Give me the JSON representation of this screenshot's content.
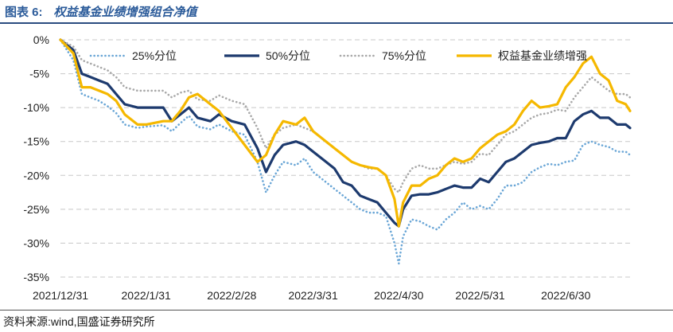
{
  "figure": {
    "number": "图表 6:",
    "title": "权益基金业绩增强组合净值",
    "source": "资料来源:wind,国盛证券研究所"
  },
  "chart_data": {
    "type": "line",
    "title": "权益基金业绩增强组合净值",
    "xlabel": "",
    "ylabel": "",
    "ylim": [
      -35,
      0
    ],
    "y_ticks": [
      0,
      -5,
      -10,
      -15,
      -20,
      -25,
      -30,
      -35
    ],
    "y_tick_labels": [
      "0%",
      "-5%",
      "-10%",
      "-15%",
      "-20%",
      "-25%",
      "-30%",
      "-35%"
    ],
    "x_range": [
      0,
      133
    ],
    "x_ticks": [
      0,
      20,
      40,
      59,
      79,
      98,
      118
    ],
    "x_tick_labels": [
      "2021/12/31",
      "2022/1/31",
      "2022/2/28",
      "2022/3/31",
      "2022/4/30",
      "2022/5/31",
      "2022/6/30"
    ],
    "grid": "horizontal dashed",
    "legend_position": "top",
    "series": [
      {
        "name": "25%分位",
        "color": "#6aa6d6",
        "style": "dotted",
        "x": [
          0,
          3,
          5,
          7,
          9,
          11,
          13,
          15,
          18,
          20,
          24,
          26,
          28,
          30,
          32,
          35,
          37,
          40,
          43,
          46,
          48,
          50,
          52,
          55,
          57,
          59,
          62,
          64,
          66,
          68,
          70,
          72,
          74,
          76,
          78,
          79,
          80,
          82,
          84,
          86,
          88,
          90,
          92,
          94,
          96,
          98,
          100,
          102,
          104,
          106,
          108,
          110,
          112,
          114,
          116,
          118,
          120,
          122,
          124,
          126,
          128,
          130,
          132,
          133
        ],
        "values": [
          0,
          -3,
          -8,
          -8.5,
          -9,
          -9.8,
          -10.8,
          -12.5,
          -13,
          -12.8,
          -12.6,
          -13.5,
          -12.3,
          -11.2,
          -12.8,
          -13.2,
          -12.5,
          -13.5,
          -14,
          -18,
          -22.5,
          -20,
          -18,
          -18.5,
          -17.5,
          -19.5,
          -21,
          -22,
          -23,
          -24,
          -25,
          -25.5,
          -25.5,
          -26,
          -30,
          -33,
          -29,
          -26.5,
          -26.8,
          -27.5,
          -28,
          -26.5,
          -25.5,
          -24,
          -25,
          -24.5,
          -25,
          -23.5,
          -21.5,
          -21.5,
          -21,
          -19.5,
          -18.8,
          -18.3,
          -18.5,
          -18,
          -17.8,
          -15.5,
          -15,
          -15.5,
          -15.8,
          -16.5,
          -16.5,
          -17
        ]
      },
      {
        "name": "50%分位",
        "color": "#1d3a6e",
        "style": "solid",
        "x": [
          0,
          3,
          5,
          7,
          9,
          11,
          13,
          15,
          18,
          20,
          24,
          26,
          28,
          30,
          32,
          35,
          37,
          40,
          43,
          46,
          48,
          50,
          52,
          55,
          57,
          59,
          62,
          64,
          66,
          68,
          70,
          72,
          74,
          76,
          78,
          79,
          80,
          82,
          84,
          86,
          88,
          90,
          92,
          94,
          96,
          98,
          100,
          102,
          104,
          106,
          108,
          110,
          112,
          114,
          116,
          118,
          120,
          122,
          124,
          126,
          128,
          130,
          132,
          133
        ],
        "values": [
          0,
          -1.5,
          -5,
          -5.5,
          -6,
          -6.5,
          -8,
          -9.5,
          -10,
          -10,
          -10,
          -12,
          -11,
          -10,
          -11.5,
          -12,
          -11,
          -12,
          -12.5,
          -16,
          -19.5,
          -17,
          -15.5,
          -15,
          -15.5,
          -16.5,
          -18,
          -19,
          -21,
          -21.5,
          -23,
          -23.5,
          -24,
          -25.5,
          -27,
          -27.5,
          -25,
          -23,
          -22.8,
          -22.8,
          -22.5,
          -22,
          -21.5,
          -21.8,
          -21.8,
          -20.5,
          -21,
          -19.5,
          -18,
          -17.5,
          -16.5,
          -15.5,
          -15.2,
          -15,
          -14.5,
          -14.5,
          -12,
          -11,
          -10.5,
          -11.5,
          -11.5,
          -12.5,
          -12.5,
          -13
        ]
      },
      {
        "name": "75%分位",
        "color": "#a8a8a8",
        "style": "dotted",
        "x": [
          0,
          3,
          5,
          7,
          9,
          11,
          13,
          15,
          18,
          20,
          24,
          26,
          28,
          30,
          32,
          35,
          37,
          40,
          43,
          46,
          48,
          50,
          52,
          55,
          57,
          59,
          62,
          64,
          66,
          68,
          70,
          72,
          74,
          76,
          78,
          79,
          80,
          82,
          84,
          86,
          88,
          90,
          92,
          94,
          96,
          98,
          100,
          102,
          104,
          106,
          108,
          110,
          112,
          114,
          116,
          118,
          120,
          122,
          124,
          126,
          128,
          130,
          132,
          133
        ],
        "values": [
          0,
          -1,
          -3,
          -3.5,
          -4,
          -4.5,
          -5.5,
          -7,
          -7.5,
          -7.5,
          -7.5,
          -8.5,
          -7.8,
          -7.5,
          -8.8,
          -9,
          -8.2,
          -9,
          -9.5,
          -13,
          -16,
          -14,
          -13,
          -12.5,
          -13,
          -13.5,
          -15,
          -16,
          -17,
          -18,
          -18.5,
          -19,
          -19,
          -20,
          -22,
          -22.5,
          -21,
          -19,
          -18.5,
          -19,
          -19,
          -18.5,
          -18,
          -18.3,
          -18,
          -16.8,
          -17,
          -15.5,
          -14,
          -13.5,
          -12.5,
          -11.5,
          -11,
          -10.8,
          -10.3,
          -10.5,
          -8.5,
          -7,
          -5.5,
          -6.5,
          -7.5,
          -8,
          -8,
          -8.5
        ]
      },
      {
        "name": "权益基金业绩增强",
        "color": "#f5b800",
        "style": "solid",
        "x": [
          0,
          3,
          5,
          7,
          9,
          11,
          13,
          15,
          18,
          20,
          24,
          26,
          28,
          30,
          32,
          35,
          37,
          40,
          43,
          46,
          48,
          50,
          52,
          55,
          57,
          59,
          62,
          64,
          66,
          68,
          70,
          72,
          74,
          76,
          78,
          79,
          80,
          82,
          84,
          86,
          88,
          90,
          92,
          94,
          96,
          98,
          100,
          102,
          104,
          106,
          108,
          110,
          112,
          114,
          116,
          118,
          120,
          122,
          124,
          126,
          128,
          130,
          132,
          133
        ],
        "values": [
          0,
          -2,
          -7,
          -7,
          -7.5,
          -8,
          -9,
          -11,
          -12.5,
          -12.5,
          -12,
          -12,
          -10.5,
          -8.5,
          -8,
          -9.5,
          -10.5,
          -13,
          -15.5,
          -18,
          -17,
          -14,
          -12,
          -12.5,
          -11.5,
          -13.5,
          -15,
          -16,
          -17,
          -18,
          -18.5,
          -18.8,
          -19,
          -20,
          -23.5,
          -27.5,
          -24,
          -21.5,
          -21.5,
          -20.5,
          -20,
          -18.5,
          -17.5,
          -18,
          -17.5,
          -16,
          -15,
          -14,
          -13.5,
          -12.5,
          -10.5,
          -9,
          -10,
          -9.8,
          -9.5,
          -7,
          -5.5,
          -3.5,
          -2.5,
          -5,
          -6,
          -9,
          -9.5,
          -10.5
        ]
      }
    ]
  }
}
